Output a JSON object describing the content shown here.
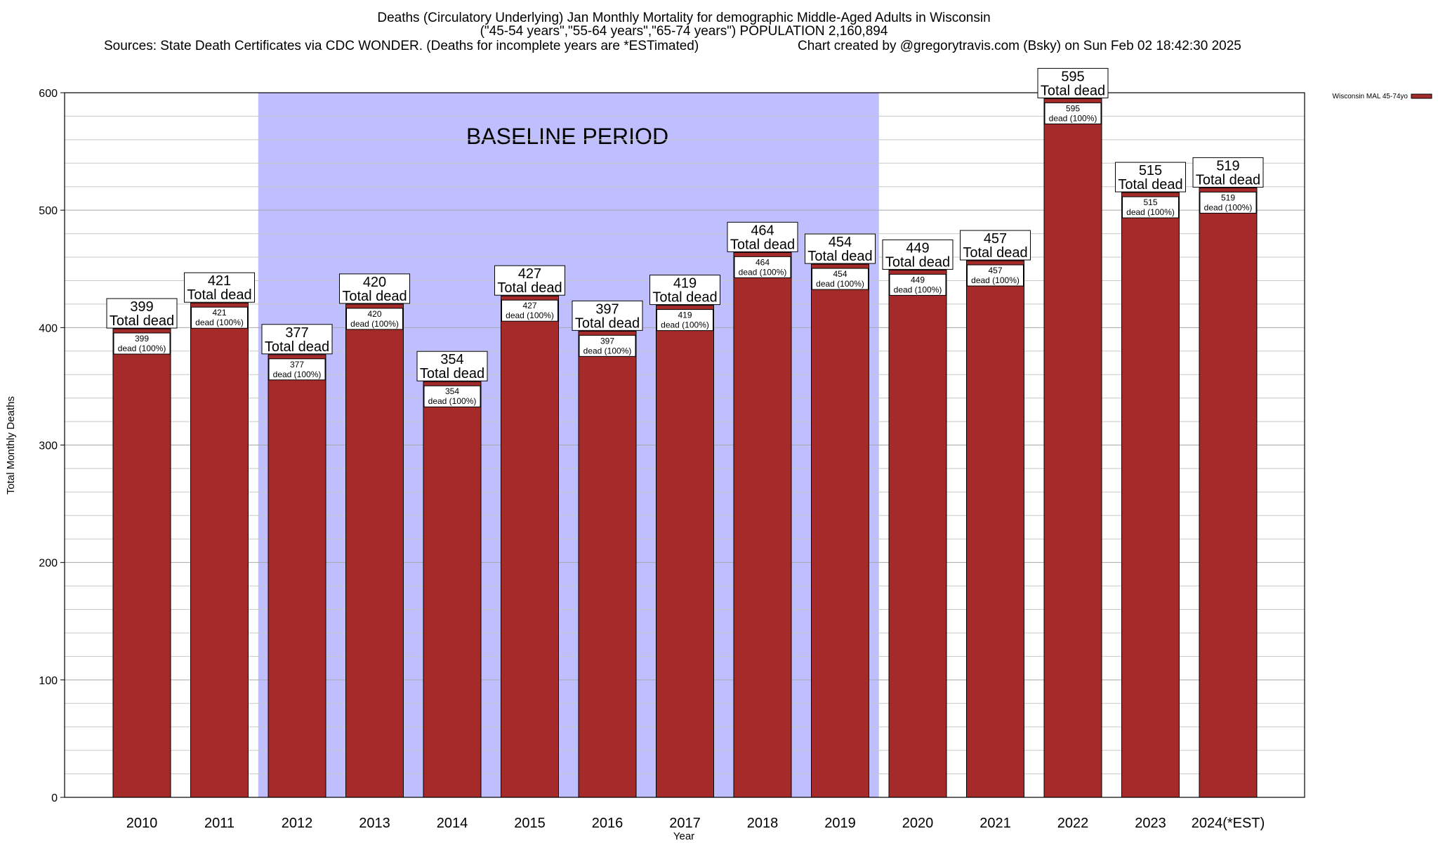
{
  "chart_data": {
    "type": "bar",
    "title_lines": [
      "Deaths (Circulatory Underlying) Jan Monthly Mortality for demographic Middle-Aged Adults in Wisconsin",
      "(\"45-54 years\",\"55-64 years\",\"65-74 years\") POPULATION 2,160,894"
    ],
    "source": "Sources: State Death Certificates via CDC WONDER. (Deaths for incomplete years are *ESTimated)",
    "credit": "Chart created by @gregorytravis.com (Bsky) on Sun Feb 02 18:42:30 2025",
    "xlabel": "Year",
    "ylabel": "Total Monthly Deaths",
    "ylim": [
      0,
      600
    ],
    "yticks": [
      0,
      100,
      200,
      300,
      400,
      500,
      600
    ],
    "minor_step": 20,
    "categories": [
      "2010",
      "2011",
      "2012",
      "2013",
      "2014",
      "2015",
      "2016",
      "2017",
      "2018",
      "2019",
      "2020",
      "2021",
      "2022",
      "2023",
      "2024(*EST)"
    ],
    "values": [
      399,
      421,
      377,
      420,
      354,
      427,
      397,
      419,
      464,
      454,
      449,
      457,
      595,
      515,
      519
    ],
    "total_suffix": "Total dead",
    "inner_suffix": "dead (100%)",
    "baseline": {
      "label": "BASELINE PERIOD",
      "start": "2012",
      "end": "2019",
      "color": "#bfbfff"
    },
    "legend": {
      "label": "Wisconsin MAL 45-74yo",
      "position": "top-right"
    },
    "bar_color": "#a52a2a"
  }
}
